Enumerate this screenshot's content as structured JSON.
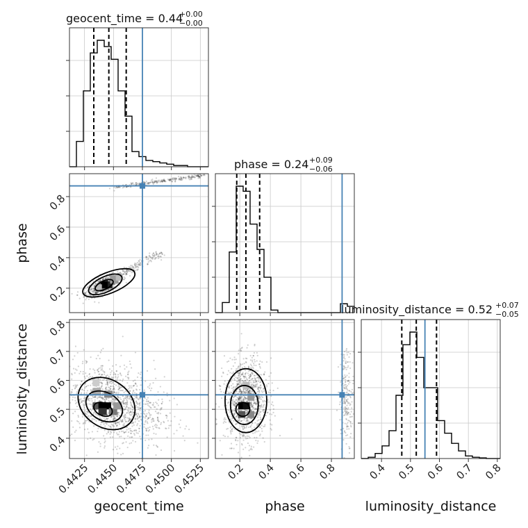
{
  "chart_data": {
    "type": "corner",
    "parameters": [
      {
        "name": "geocent_time",
        "axis_label": "geocent_time",
        "title_main": "geocent_time = 0.44",
        "title_sup": "+0.00",
        "title_sub": "−0.00",
        "range": [
          0.4412,
          0.4532
        ],
        "ticks": [
          "0.4425",
          "0.4450",
          "0.4475",
          "0.4500",
          "0.4525"
        ],
        "tick_values": [
          0.4425,
          0.445,
          0.4475,
          0.45,
          0.4525
        ],
        "truth": 0.4475,
        "quantiles": [
          0.4433,
          0.4446,
          0.4461
        ],
        "hist_edges_start": 0.4412,
        "hist_bin_width": 0.0006,
        "hist_counts": [
          0.0,
          0.2,
          0.6,
          0.9,
          1.0,
          0.95,
          0.85,
          0.6,
          0.4,
          0.12,
          0.08,
          0.05,
          0.04,
          0.03,
          0.02,
          0.01,
          0.01,
          0.0,
          0.0,
          0.0
        ]
      },
      {
        "name": "phase",
        "axis_label": "phase",
        "title_main": "phase = 0.24",
        "title_sup": "+0.09",
        "title_sub": "−0.06",
        "range": [
          0.04,
          0.95
        ],
        "ticks": [
          "0.2",
          "0.4",
          "0.6",
          "0.8"
        ],
        "tick_values": [
          0.2,
          0.4,
          0.6,
          0.8
        ],
        "truth": 0.87,
        "quantiles": [
          0.18,
          0.24,
          0.33
        ],
        "hist_edges_start": 0.04,
        "hist_bin_width": 0.0455,
        "hist_counts": [
          0.0,
          0.08,
          0.48,
          1.0,
          0.96,
          0.7,
          0.5,
          0.28,
          0.02,
          0.0,
          0.0,
          0.0,
          0.0,
          0.0,
          0.0,
          0.0,
          0.0,
          0.0,
          0.07,
          0.05
        ]
      },
      {
        "name": "luminosity_distance",
        "axis_label": "luminosity_distance",
        "title_main": "luminosity_distance = 0.52",
        "title_sup": "+0.07",
        "title_sub": "−0.05",
        "range": [
          0.33,
          0.81
        ],
        "ticks": [
          "0.4",
          "0.5",
          "0.6",
          "0.7",
          "0.8"
        ],
        "tick_values": [
          0.4,
          0.5,
          0.6,
          0.7,
          0.8
        ],
        "truth": 0.55,
        "quantiles": [
          0.47,
          0.52,
          0.59
        ],
        "hist_edges_start": 0.33,
        "hist_bin_width": 0.024,
        "hist_counts": [
          0.0,
          0.01,
          0.04,
          0.1,
          0.22,
          0.5,
          0.9,
          1.0,
          0.8,
          0.56,
          0.56,
          0.3,
          0.2,
          0.12,
          0.06,
          0.02,
          0.01,
          0.005,
          0.0,
          0.0
        ]
      }
    ],
    "grid": true,
    "truth_color": "#4682b4",
    "hist_color": "#000000",
    "density_color": "#000000"
  }
}
